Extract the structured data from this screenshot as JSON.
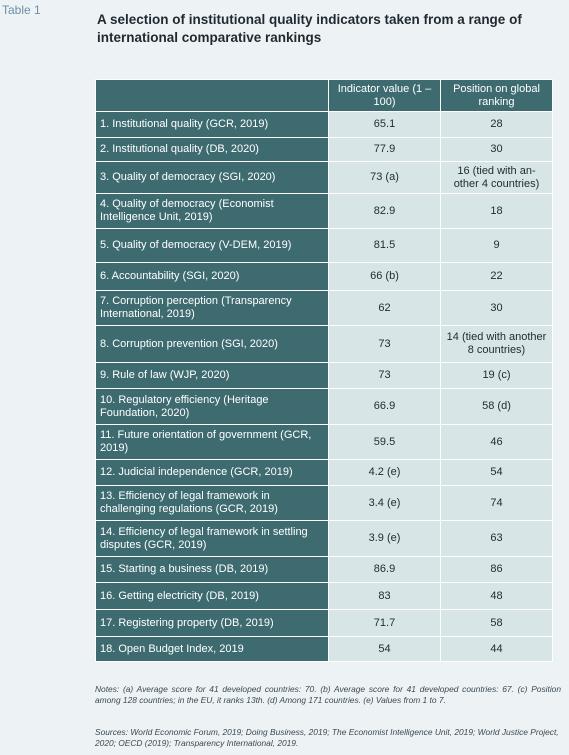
{
  "table_label": "Table 1",
  "title": "A selection of institutional quality indicators taken from a range of international comparative rankings",
  "table": {
    "columns": [
      "Indicator value (1 – 100)",
      "Position on global ranking"
    ],
    "rows": [
      [
        "1. Institutional quality (GCR, 2019)",
        65.1,
        28
      ],
      [
        "2. Institutional quality (DB, 2020)",
        77.9,
        30
      ],
      [
        "3. Quality of democracy (SGI, 2020)",
        "73 (a)",
        "16 (tied with an-other 4 countries)"
      ],
      [
        "4. Quality of democracy (Economist Intelligence Unit, 2019)",
        82.9,
        18
      ],
      [
        "5. Quality of democracy (V-DEM, 2019)",
        81.5,
        9
      ],
      [
        "6. Accountability (SGI, 2020)",
        "66 (b)",
        22
      ],
      [
        "7. Corruption perception (Transparency International, 2019)",
        62,
        30
      ],
      [
        "8. Corruption prevention (SGI, 2020)",
        73,
        "14 (tied with another 8 countries)"
      ],
      [
        "9. Rule of law (WJP, 2020)",
        73,
        "19 (c)"
      ],
      [
        "10. Regulatory efficiency (Heritage Foundation, 2020)",
        66.9,
        "58 (d)"
      ],
      [
        "11. Future orientation of government (GCR, 2019)",
        59.5,
        46
      ],
      [
        "12. Judicial independence (GCR, 2019)",
        "4.2 (e)",
        54
      ],
      [
        "13. Efficiency of legal framework in challenging regulations (GCR, 2019)",
        "3.4 (e)",
        74
      ],
      [
        "14. Efficiency of legal framework in settling disputes (GCR, 2019)",
        "3.9 (e)",
        63
      ],
      [
        "15. Starting a business (DB, 2019)",
        86.9,
        86
      ],
      [
        "16. Getting electricity (DB, 2019)",
        83,
        48
      ],
      [
        "17. Registering property (DB, 2019)",
        71.7,
        58
      ],
      [
        "18. Open Budget Index, 2019",
        54,
        44
      ]
    ]
  },
  "notes": "Notes: (a) Average score for 41 developed countries: 70. (b) Average score for 41 developed countries: 67. (c) Position among 128 countries; in the EU, it ranks 13th. (d) Among 171 countries. (e) Values from 1 to 7.",
  "sources": "Sources: World Economic Forum, 2019; Doing Business, 2019; The Economist Intelligence Unit, 2019; World Justice Project, 2020; OECD (2019); Transparency International, 2019."
}
